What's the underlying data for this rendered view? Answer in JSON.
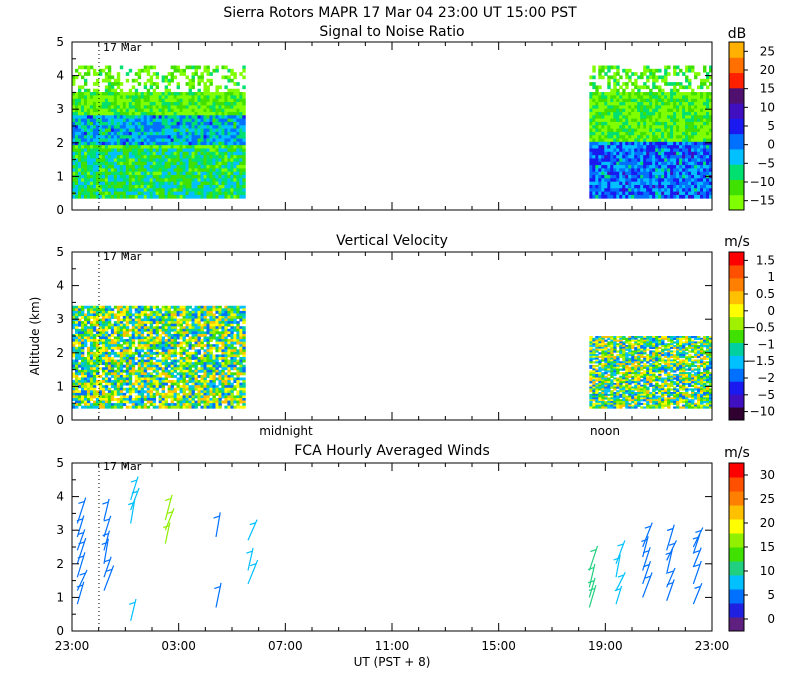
{
  "title": "Sierra Rotors  MAPR 17 Mar 04  23:00 UT  15:00  PST",
  "colors": {
    "snr": [
      "#80ff00",
      "#40e000",
      "#00e070",
      "#00c0ff",
      "#0070ff",
      "#1a1af0",
      "#4010c0",
      "#501070",
      "#ff2000",
      "#ff7000",
      "#ffb000"
    ],
    "vv": [
      "#300030",
      "#4010c0",
      "#1a1af0",
      "#0070ff",
      "#00c0ff",
      "#00d0a0",
      "#40e000",
      "#a0f000",
      "#ffff00",
      "#ffc000",
      "#ff8000",
      "#ff5000",
      "#ff0000"
    ],
    "wind": [
      "#602080",
      "#2020e0",
      "#0070ff",
      "#00c0ff",
      "#20d080",
      "#40e000",
      "#90f000",
      "#ffff00",
      "#ffc000",
      "#ff8000",
      "#ff5000",
      "#ff0000"
    ]
  },
  "chart_data": [
    {
      "id": "snr",
      "type": "heatmap",
      "title": "Signal to Noise Ratio",
      "date_marker": "17 Mar",
      "ylabel": "",
      "ylim": [
        0,
        5
      ],
      "yticks": [
        "0",
        "1",
        "2",
        "3",
        "4",
        "5"
      ],
      "xlim": [
        0,
        24
      ],
      "colorbar_unit": "dB",
      "colorbar_labels": [
        "25",
        "20",
        "15",
        "10",
        "5",
        "0",
        "−5",
        "−10",
        "−15"
      ],
      "data_blocks": [
        {
          "start_hr": 0,
          "end_hr": 6.5,
          "alt_min": 0.35,
          "alt_max": 4.3
        },
        {
          "start_hr": 19.4,
          "end_hr": 24,
          "alt_min": 0.35,
          "alt_max": 4.3
        }
      ]
    },
    {
      "id": "vv",
      "type": "heatmap",
      "title": "Vertical Velocity",
      "date_marker": "17 Mar",
      "ylabel": "Altitude (km)",
      "ylim": [
        0,
        5
      ],
      "yticks": [
        "0",
        "1",
        "2",
        "3",
        "4",
        "5"
      ],
      "xlim": [
        0,
        24
      ],
      "colorbar_unit": "m/s",
      "colorbar_labels": [
        "1.5",
        "1",
        "0.5",
        "0",
        "−0.5",
        "−1",
        "−1.5",
        "−2",
        "−5",
        "−10"
      ],
      "day_labels": [
        "midnight",
        "noon"
      ],
      "data_blocks": [
        {
          "start_hr": 0,
          "end_hr": 6.5,
          "alt_min": 0.35,
          "alt_max": 3.4
        },
        {
          "start_hr": 19.4,
          "end_hr": 24,
          "alt_min": 0.35,
          "alt_max": 2.5
        }
      ]
    },
    {
      "id": "wind",
      "type": "scatter",
      "title": "FCA Hourly Averaged Winds",
      "date_marker": "17 Mar",
      "ylabel": "",
      "ylim": [
        0,
        5
      ],
      "yticks": [
        "0",
        "1",
        "2",
        "3",
        "4",
        "5"
      ],
      "xlim": [
        0,
        24
      ],
      "xtick_labels": [
        "23:00",
        "03:00",
        "07:00",
        "11:00",
        "15:00",
        "19:00",
        "23:00"
      ],
      "xlabel": "UT  (PST + 8)",
      "colorbar_unit": "m/s",
      "colorbar_labels": [
        "30",
        "25",
        "20",
        "15",
        "10",
        "5",
        "0"
      ],
      "barbs": [
        {
          "hr": 0.2,
          "alt": [
            0.8,
            1.2,
            1.6,
            2.0,
            2.4,
            2.8,
            3.2
          ],
          "speed": 6
        },
        {
          "hr": 1.2,
          "alt": [
            1.2,
            1.6,
            2.0,
            2.4,
            2.8,
            3.3
          ],
          "speed": 6
        },
        {
          "hr": 2.2,
          "alt": [
            0.3,
            3.2,
            3.6,
            3.9
          ],
          "speed": 7
        },
        {
          "hr": 3.5,
          "alt": [
            2.6,
            3.0,
            3.3
          ],
          "speed": 16
        },
        {
          "hr": 5.4,
          "alt": [
            0.7,
            2.8
          ],
          "speed": 4
        },
        {
          "hr": 6.6,
          "alt": [
            1.4,
            1.8,
            2.7
          ],
          "speed": 9
        },
        {
          "hr": 19.4,
          "alt": [
            0.7,
            1.0,
            1.3,
            1.8
          ],
          "speed": 10
        },
        {
          "hr": 20.4,
          "alt": [
            0.8,
            1.2,
            1.6,
            2.0
          ],
          "speed": 7
        },
        {
          "hr": 21.4,
          "alt": [
            1.0,
            1.4,
            1.8,
            2.2,
            2.5
          ],
          "speed": 6
        },
        {
          "hr": 22.3,
          "alt": [
            0.9,
            1.3,
            1.7,
            2.1,
            2.4
          ],
          "speed": 5
        },
        {
          "hr": 23.3,
          "alt": [
            0.8,
            1.4,
            1.9,
            2.3,
            2.5
          ],
          "speed": 4
        }
      ]
    }
  ]
}
